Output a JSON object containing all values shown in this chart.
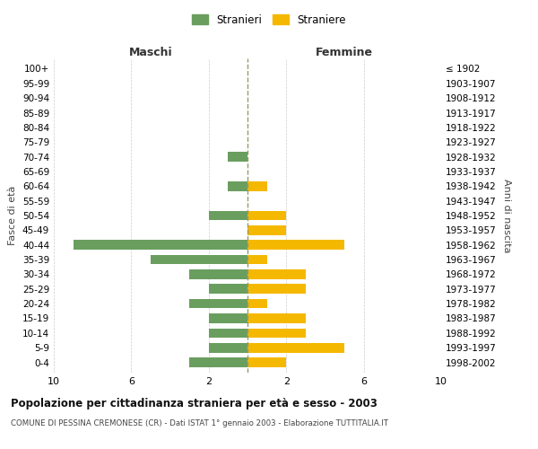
{
  "age_groups": [
    "0-4",
    "5-9",
    "10-14",
    "15-19",
    "20-24",
    "25-29",
    "30-34",
    "35-39",
    "40-44",
    "45-49",
    "50-54",
    "55-59",
    "60-64",
    "65-69",
    "70-74",
    "75-79",
    "80-84",
    "85-89",
    "90-94",
    "95-99",
    "100+"
  ],
  "birth_years": [
    "1998-2002",
    "1993-1997",
    "1988-1992",
    "1983-1987",
    "1978-1982",
    "1973-1977",
    "1968-1972",
    "1963-1967",
    "1958-1962",
    "1953-1957",
    "1948-1952",
    "1943-1947",
    "1938-1942",
    "1933-1937",
    "1928-1932",
    "1923-1927",
    "1918-1922",
    "1913-1917",
    "1908-1912",
    "1903-1907",
    "≤ 1902"
  ],
  "males": [
    3,
    2,
    2,
    2,
    3,
    2,
    3,
    5,
    9,
    0,
    2,
    0,
    1,
    0,
    1,
    0,
    0,
    0,
    0,
    0,
    0
  ],
  "females": [
    2,
    5,
    3,
    3,
    1,
    3,
    3,
    1,
    5,
    2,
    2,
    0,
    1,
    0,
    0,
    0,
    0,
    0,
    0,
    0,
    0
  ],
  "male_color": "#6a9e5f",
  "female_color": "#f5b800",
  "xlim": 10,
  "title": "Popolazione per cittadinanza straniera per età e sesso - 2003",
  "subtitle": "COMUNE DI PESSINA CREMONESE (CR) - Dati ISTAT 1° gennaio 2003 - Elaborazione TUTTITALIA.IT",
  "xlabel_left": "Maschi",
  "xlabel_right": "Femmine",
  "ylabel_left": "Fasce di età",
  "ylabel_right": "Anni di nascita",
  "legend_male": "Stranieri",
  "legend_female": "Straniere",
  "background_color": "#ffffff",
  "grid_color": "#cccccc"
}
